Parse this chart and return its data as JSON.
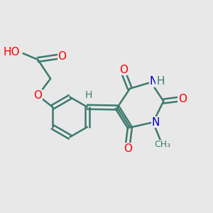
{
  "bg_color": "#e8e8e8",
  "bond_color": "#3d7a6e",
  "atom_colors": {
    "O": "#ff0000",
    "N": "#0000cc",
    "H": "#3d7a6e",
    "C": "#3d7a6e"
  },
  "bond_width": 1.8,
  "font_size": 11,
  "title": ""
}
